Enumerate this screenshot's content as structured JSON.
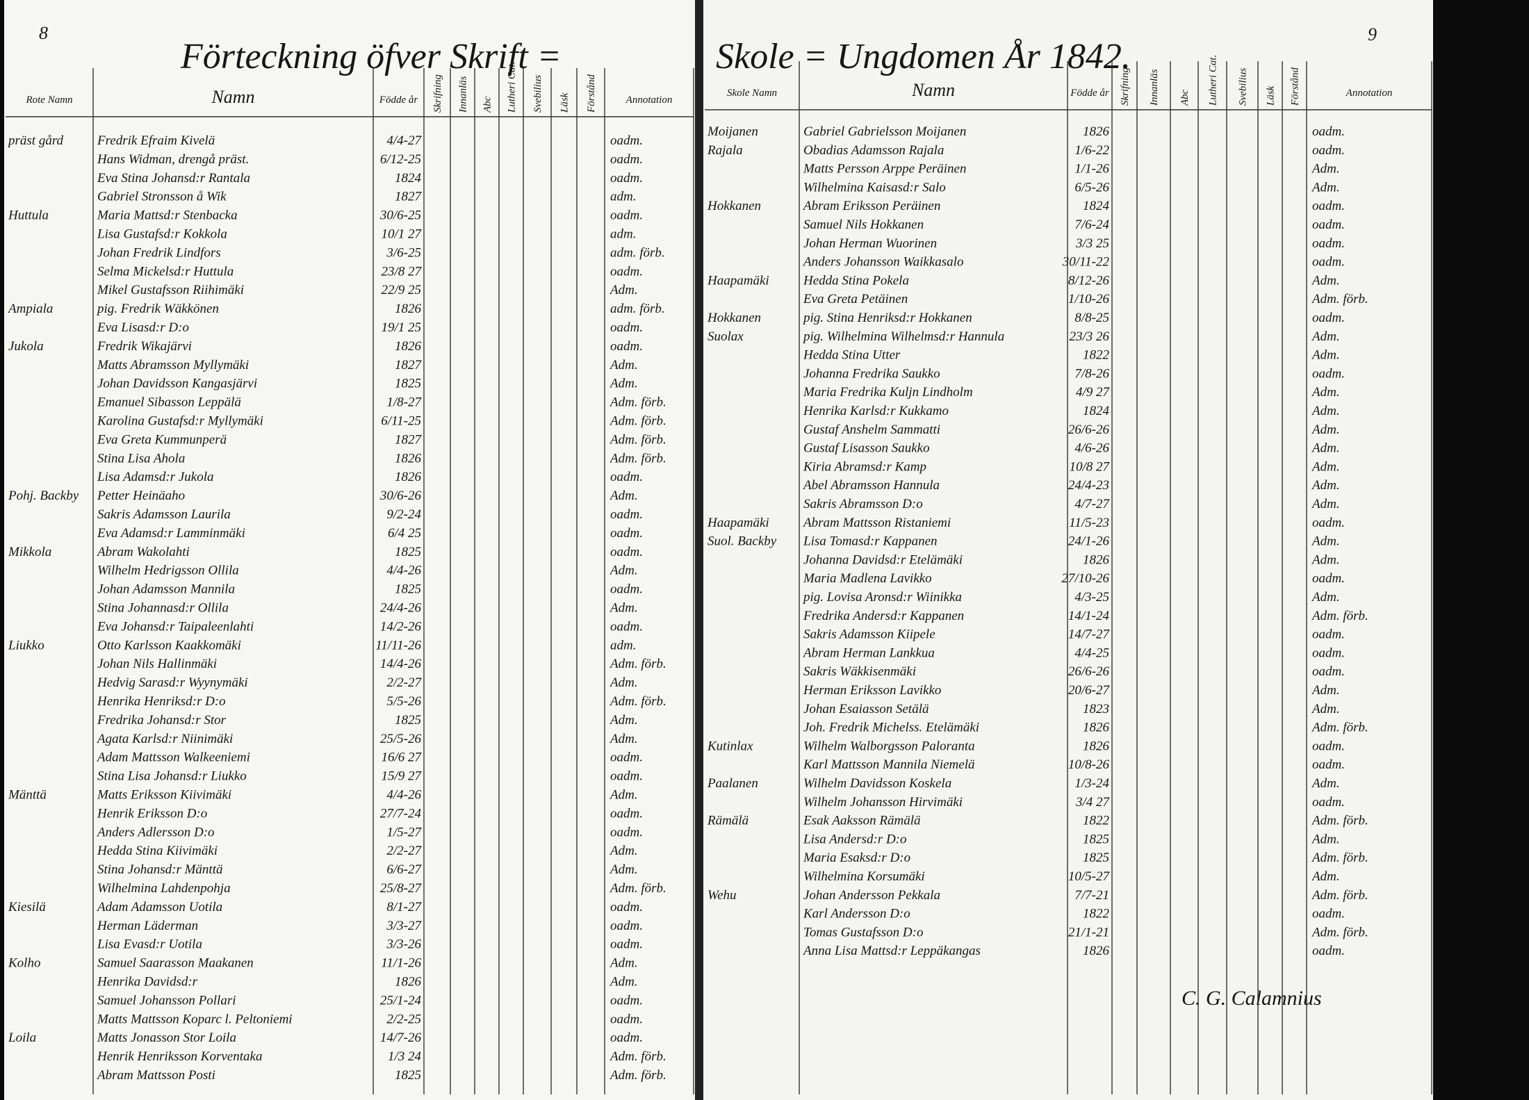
{
  "header": {
    "page_left": "8",
    "page_right": "9",
    "title_left": "Förteckning öfver Skrift =",
    "title_right": "Skole = Ungdomen År 1842."
  },
  "left_page": {
    "columns": [
      "Rote Namn",
      "Namn",
      "Födde år",
      "Skrifning",
      "Innanläs",
      "Abc",
      "Lutheri Cat.",
      "Svebilius",
      "Läsk",
      "Förstånd",
      "Annotation"
    ],
    "rows": [
      {
        "rote": "präst gård",
        "name": "Fredrik Efraim Kivelä",
        "born": "4/4-27",
        "status": "oadm."
      },
      {
        "name": "Hans Widman, drengå präst.",
        "born": "6/12-25",
        "status": "oadm."
      },
      {
        "name": "Eva Stina Johansd:r Rantala",
        "born": "1824",
        "status": "oadm."
      },
      {
        "name": "Gabriel Stronsson å Wik",
        "born": "1827",
        "status": "adm."
      },
      {
        "rote": "Huttula",
        "name": "Maria Mattsd:r Stenbacka",
        "born": "30/6-25",
        "status": "oadm."
      },
      {
        "name": "Lisa Gustafsd:r Kokkola",
        "born": "10/1 27",
        "status": "adm."
      },
      {
        "name": "Johan Fredrik Lindfors",
        "born": "3/6-25",
        "status": "adm. förb."
      },
      {
        "name": "Selma Mickelsd:r Huttula",
        "born": "23/8 27",
        "status": "oadm."
      },
      {
        "name": "Mikel Gustafsson Riihimäki",
        "born": "22/9 25",
        "status": "Adm."
      },
      {
        "rote": "Ampiala",
        "name": "pig. Fredrik Wäkkönen",
        "born": "1826",
        "status": "adm. förb."
      },
      {
        "name": "Eva Lisasd:r D:o",
        "born": "19/1 25",
        "status": "oadm."
      },
      {
        "rote": "Jukola",
        "name": "Fredrik Wikajärvi",
        "born": "1826",
        "status": "oadm."
      },
      {
        "name": "Matts Abramsson Myllymäki",
        "born": "1827",
        "status": "Adm."
      },
      {
        "name": "Johan Davidsson Kangasjärvi",
        "born": "1825",
        "status": "Adm."
      },
      {
        "name": "Emanuel Sibasson Leppälä",
        "born": "1/8-27",
        "status": "Adm. förb."
      },
      {
        "name": "Karolina Gustafsd:r Myllymäki",
        "born": "6/11-25",
        "status": "Adm. förb."
      },
      {
        "name": "Eva Greta Kummunperä",
        "born": "1827",
        "status": "Adm. förb."
      },
      {
        "name": "Stina Lisa Ahola",
        "born": "1826",
        "status": "Adm. förb."
      },
      {
        "name": "Lisa Adamsd:r Jukola",
        "born": "1826",
        "status": "oadm."
      },
      {
        "rote": "Pohj. Backby",
        "name": "Petter Heinäaho",
        "born": "30/6-26",
        "status": "Adm."
      },
      {
        "name": "Sakris Adamsson Laurila",
        "born": "9/2-24",
        "status": "oadm."
      },
      {
        "name": "Eva Adamsd:r Lamminmäki",
        "born": "6/4 25",
        "status": "oadm."
      },
      {
        "rote": "Mikkola",
        "name": "Abram Wakolahti",
        "born": "1825",
        "status": "oadm."
      },
      {
        "name": "Wilhelm Hedrigsson Ollila",
        "born": "4/4-26",
        "status": "Adm."
      },
      {
        "name": "Johan Adamsson Mannila",
        "born": "1825",
        "status": "oadm."
      },
      {
        "name": "Stina Johannasd:r Ollila",
        "born": "24/4-26",
        "status": "Adm."
      },
      {
        "name": "Eva Johansd:r Taipaleenlahti",
        "born": "14/2-26",
        "status": "oadm."
      },
      {
        "rote": "Liukko",
        "name": "Otto Karlsson Kaakkomäki",
        "born": "11/11-26",
        "status": "adm."
      },
      {
        "name": "Johan Nils Hallinmäki",
        "born": "14/4-26",
        "status": "Adm. förb."
      },
      {
        "name": "Hedvig Sarasd:r Wyynymäki",
        "born": "2/2-27",
        "status": "Adm."
      },
      {
        "name": "Henrika Henriksd:r D:o",
        "born": "5/5-26",
        "status": "Adm. förb."
      },
      {
        "name": "Fredrika Johansd:r Stor",
        "born": "1825",
        "status": "Adm."
      },
      {
        "name": "Agata Karlsd:r Niinimäki",
        "born": "25/5-26",
        "status": "Adm."
      },
      {
        "name": "Adam Mattsson Walkeeniemi",
        "born": "16/6 27",
        "status": "oadm."
      },
      {
        "name": "Stina Lisa Johansd:r Liukko",
        "born": "15/9 27",
        "status": "oadm."
      },
      {
        "rote": "Mänttä",
        "name": "Matts Eriksson Kiivimäki",
        "born": "4/4-26",
        "status": "Adm."
      },
      {
        "name": "Henrik Eriksson D:o",
        "born": "27/7-24",
        "status": "oadm."
      },
      {
        "name": "Anders Adlersson D:o",
        "born": "1/5-27",
        "status": "oadm."
      },
      {
        "name": "Hedda Stina Kiivimäki",
        "born": "2/2-27",
        "status": "Adm."
      },
      {
        "name": "Stina Johansd:r Mänttä",
        "born": "6/6-27",
        "status": "Adm."
      },
      {
        "name": "Wilhelmina Lahdenpohja",
        "born": "25/8-27",
        "status": "Adm. förb."
      },
      {
        "rote": "Kiesilä",
        "name": "Adam Adamsson Uotila",
        "born": "8/1-27",
        "status": "oadm."
      },
      {
        "name": "Herman Läderman",
        "born": "3/3-27",
        "status": "oadm."
      },
      {
        "name": "Lisa Evasd:r Uotila",
        "born": "3/3-26",
        "status": "oadm."
      },
      {
        "rote": "Kolho",
        "name": "Samuel Saarasson Maakanen",
        "born": "11/1-26",
        "status": "Adm."
      },
      {
        "name": "Henrika Davidsd:r",
        "born": "1826",
        "status": "Adm."
      },
      {
        "name": "Samuel Johansson Pollari",
        "born": "25/1-24",
        "status": "oadm."
      },
      {
        "name": "Matts Mattsson Koparc l. Peltoniemi",
        "born": "2/2-25",
        "status": "oadm."
      },
      {
        "rote": "Loila",
        "name": "Matts Jonasson Stor Loila",
        "born": "14/7-26",
        "status": "oadm."
      },
      {
        "name": "Henrik Henriksson Korventaka",
        "born": "1/3 24",
        "status": "Adm. förb."
      },
      {
        "name": "Abram Mattsson Posti",
        "born": "1825",
        "status": "Adm. förb."
      }
    ]
  },
  "right_page": {
    "columns": [
      "Skole Namn",
      "Namn",
      "Födde år",
      "Skrifning",
      "Innanläs",
      "Abc",
      "Lutheri Cat.",
      "Svebilius",
      "Läsk",
      "Förstånd",
      "Annotation"
    ],
    "rows": [
      {
        "rote": "Moijanen",
        "name": "Gabriel Gabrielsson Moijanen",
        "born": "1826",
        "status": "oadm."
      },
      {
        "rote": "Rajala",
        "name": "Obadias Adamsson Rajala",
        "born": "1/6-22",
        "status": "oadm."
      },
      {
        "name": "Matts Persson Arppe Peräinen",
        "born": "1/1-26",
        "status": "Adm."
      },
      {
        "name": "Wilhelmina Kaisasd:r Salo",
        "born": "6/5-26",
        "status": "Adm."
      },
      {
        "rote": "Hokkanen",
        "name": "Abram Eriksson Peräinen",
        "born": "1824",
        "status": "oadm."
      },
      {
        "name": "Samuel Nils Hokkanen",
        "born": "7/6-24",
        "status": "oadm."
      },
      {
        "name": "Johan Herman Wuorinen",
        "born": "3/3 25",
        "status": "oadm."
      },
      {
        "name": "Anders Johansson Waikkasalo",
        "born": "30/11-22",
        "status": "oadm."
      },
      {
        "rote": "Haapamäki",
        "name": "Hedda Stina Pokela",
        "born": "8/12-26",
        "status": "Adm."
      },
      {
        "name": "Eva Greta Petäinen",
        "born": "1/10-26",
        "status": "Adm. förb."
      },
      {
        "rote": "Hokkanen",
        "name": "pig. Stina Henriksd:r Hokkanen",
        "born": "8/8-25",
        "status": "oadm."
      },
      {
        "rote": "Suolax",
        "name": "pig. Wilhelmina Wilhelmsd:r Hannula",
        "born": "23/3 26",
        "status": "Adm."
      },
      {
        "name": "Hedda Stina Utter",
        "born": "1822",
        "status": "Adm."
      },
      {
        "name": "Johanna Fredrika Saukko",
        "born": "7/8-26",
        "status": "oadm."
      },
      {
        "name": "Maria Fredrika Kuljn Lindholm",
        "born": "4/9 27",
        "status": "Adm."
      },
      {
        "name": "Henrika Karlsd:r Kukkamo",
        "born": "1824",
        "status": "Adm."
      },
      {
        "name": "Gustaf Anshelm Sammatti",
        "born": "26/6-26",
        "status": "Adm."
      },
      {
        "name": "Gustaf Lisasson Saukko",
        "born": "4/6-26",
        "status": "Adm."
      },
      {
        "name": "Kiria Abramsd:r Kamp",
        "born": "10/8 27",
        "status": "Adm."
      },
      {
        "name": "Abel Abramsson Hannula",
        "born": "24/4-23",
        "status": "Adm."
      },
      {
        "name": "Sakris Abramsson D:o",
        "born": "4/7-27",
        "status": "Adm."
      },
      {
        "rote": "Haapamäki",
        "name": "Abram Mattsson Ristaniemi",
        "born": "11/5-23",
        "status": "oadm."
      },
      {
        "rote": "Suol. Backby",
        "name": "Lisa Tomasd:r Kappanen",
        "born": "24/1-26",
        "status": "Adm."
      },
      {
        "name": "Johanna Davidsd:r Etelämäki",
        "born": "1826",
        "status": "Adm."
      },
      {
        "name": "Maria Madlena Lavikko",
        "born": "27/10-26",
        "status": "oadm."
      },
      {
        "name": "pig. Lovisa Aronsd:r Wiinikka",
        "born": "4/3-25",
        "status": "Adm."
      },
      {
        "name": "Fredrika Andersd:r Kappanen",
        "born": "14/1-24",
        "status": "Adm. förb."
      },
      {
        "name": "Sakris Adamsson Kiipele",
        "born": "14/7-27",
        "status": "oadm."
      },
      {
        "name": "Abram Herman Lankkua",
        "born": "4/4-25",
        "status": "oadm."
      },
      {
        "name": "Sakris Wäkkisenmäki",
        "born": "26/6-26",
        "status": "oadm."
      },
      {
        "name": "Herman Eriksson Lavikko",
        "born": "20/6-27",
        "status": "Adm."
      },
      {
        "name": "Johan Esaiasson Setälä",
        "born": "1823",
        "status": "Adm."
      },
      {
        "name": "Joh. Fredrik Michelss. Etelämäki",
        "born": "1826",
        "status": "Adm. förb."
      },
      {
        "rote": "Kutinlax",
        "name": "Wilhelm Walborgsson Paloranta",
        "born": "1826",
        "status": "oadm."
      },
      {
        "name": "Karl Mattsson Mannila Niemelä",
        "born": "10/8-26",
        "status": "oadm."
      },
      {
        "rote": "Paalanen",
        "name": "Wilhelm Davidsson Koskela",
        "born": "1/3-24",
        "status": "Adm."
      },
      {
        "name": "Wilhelm Johansson Hirvimäki",
        "born": "3/4 27",
        "status": "oadm."
      },
      {
        "rote": "Rämälä",
        "name": "Esak Aaksson Rämälä",
        "born": "1822",
        "status": "Adm. förb."
      },
      {
        "name": "Lisa Andersd:r D:o",
        "born": "1825",
        "status": "Adm."
      },
      {
        "name": "Maria Esaksd:r D:o",
        "born": "1825",
        "status": "Adm. förb."
      },
      {
        "name": "Wilhelmina Korsumäki",
        "born": "10/5-27",
        "status": "Adm."
      },
      {
        "rote": "Wehu",
        "name": "Johan Andersson Pekkala",
        "born": "7/7-21",
        "status": "Adm. förb."
      },
      {
        "name": "Karl Andersson D:o",
        "born": "1822",
        "status": "oadm."
      },
      {
        "name": "Tomas Gustafsson D:o",
        "born": "21/1-21",
        "status": "Adm. förb."
      },
      {
        "name": "Anna Lisa Mattsd:r Leppäkangas",
        "born": "1826",
        "status": "oadm."
      }
    ]
  },
  "signature": "C. G. Calamnius"
}
